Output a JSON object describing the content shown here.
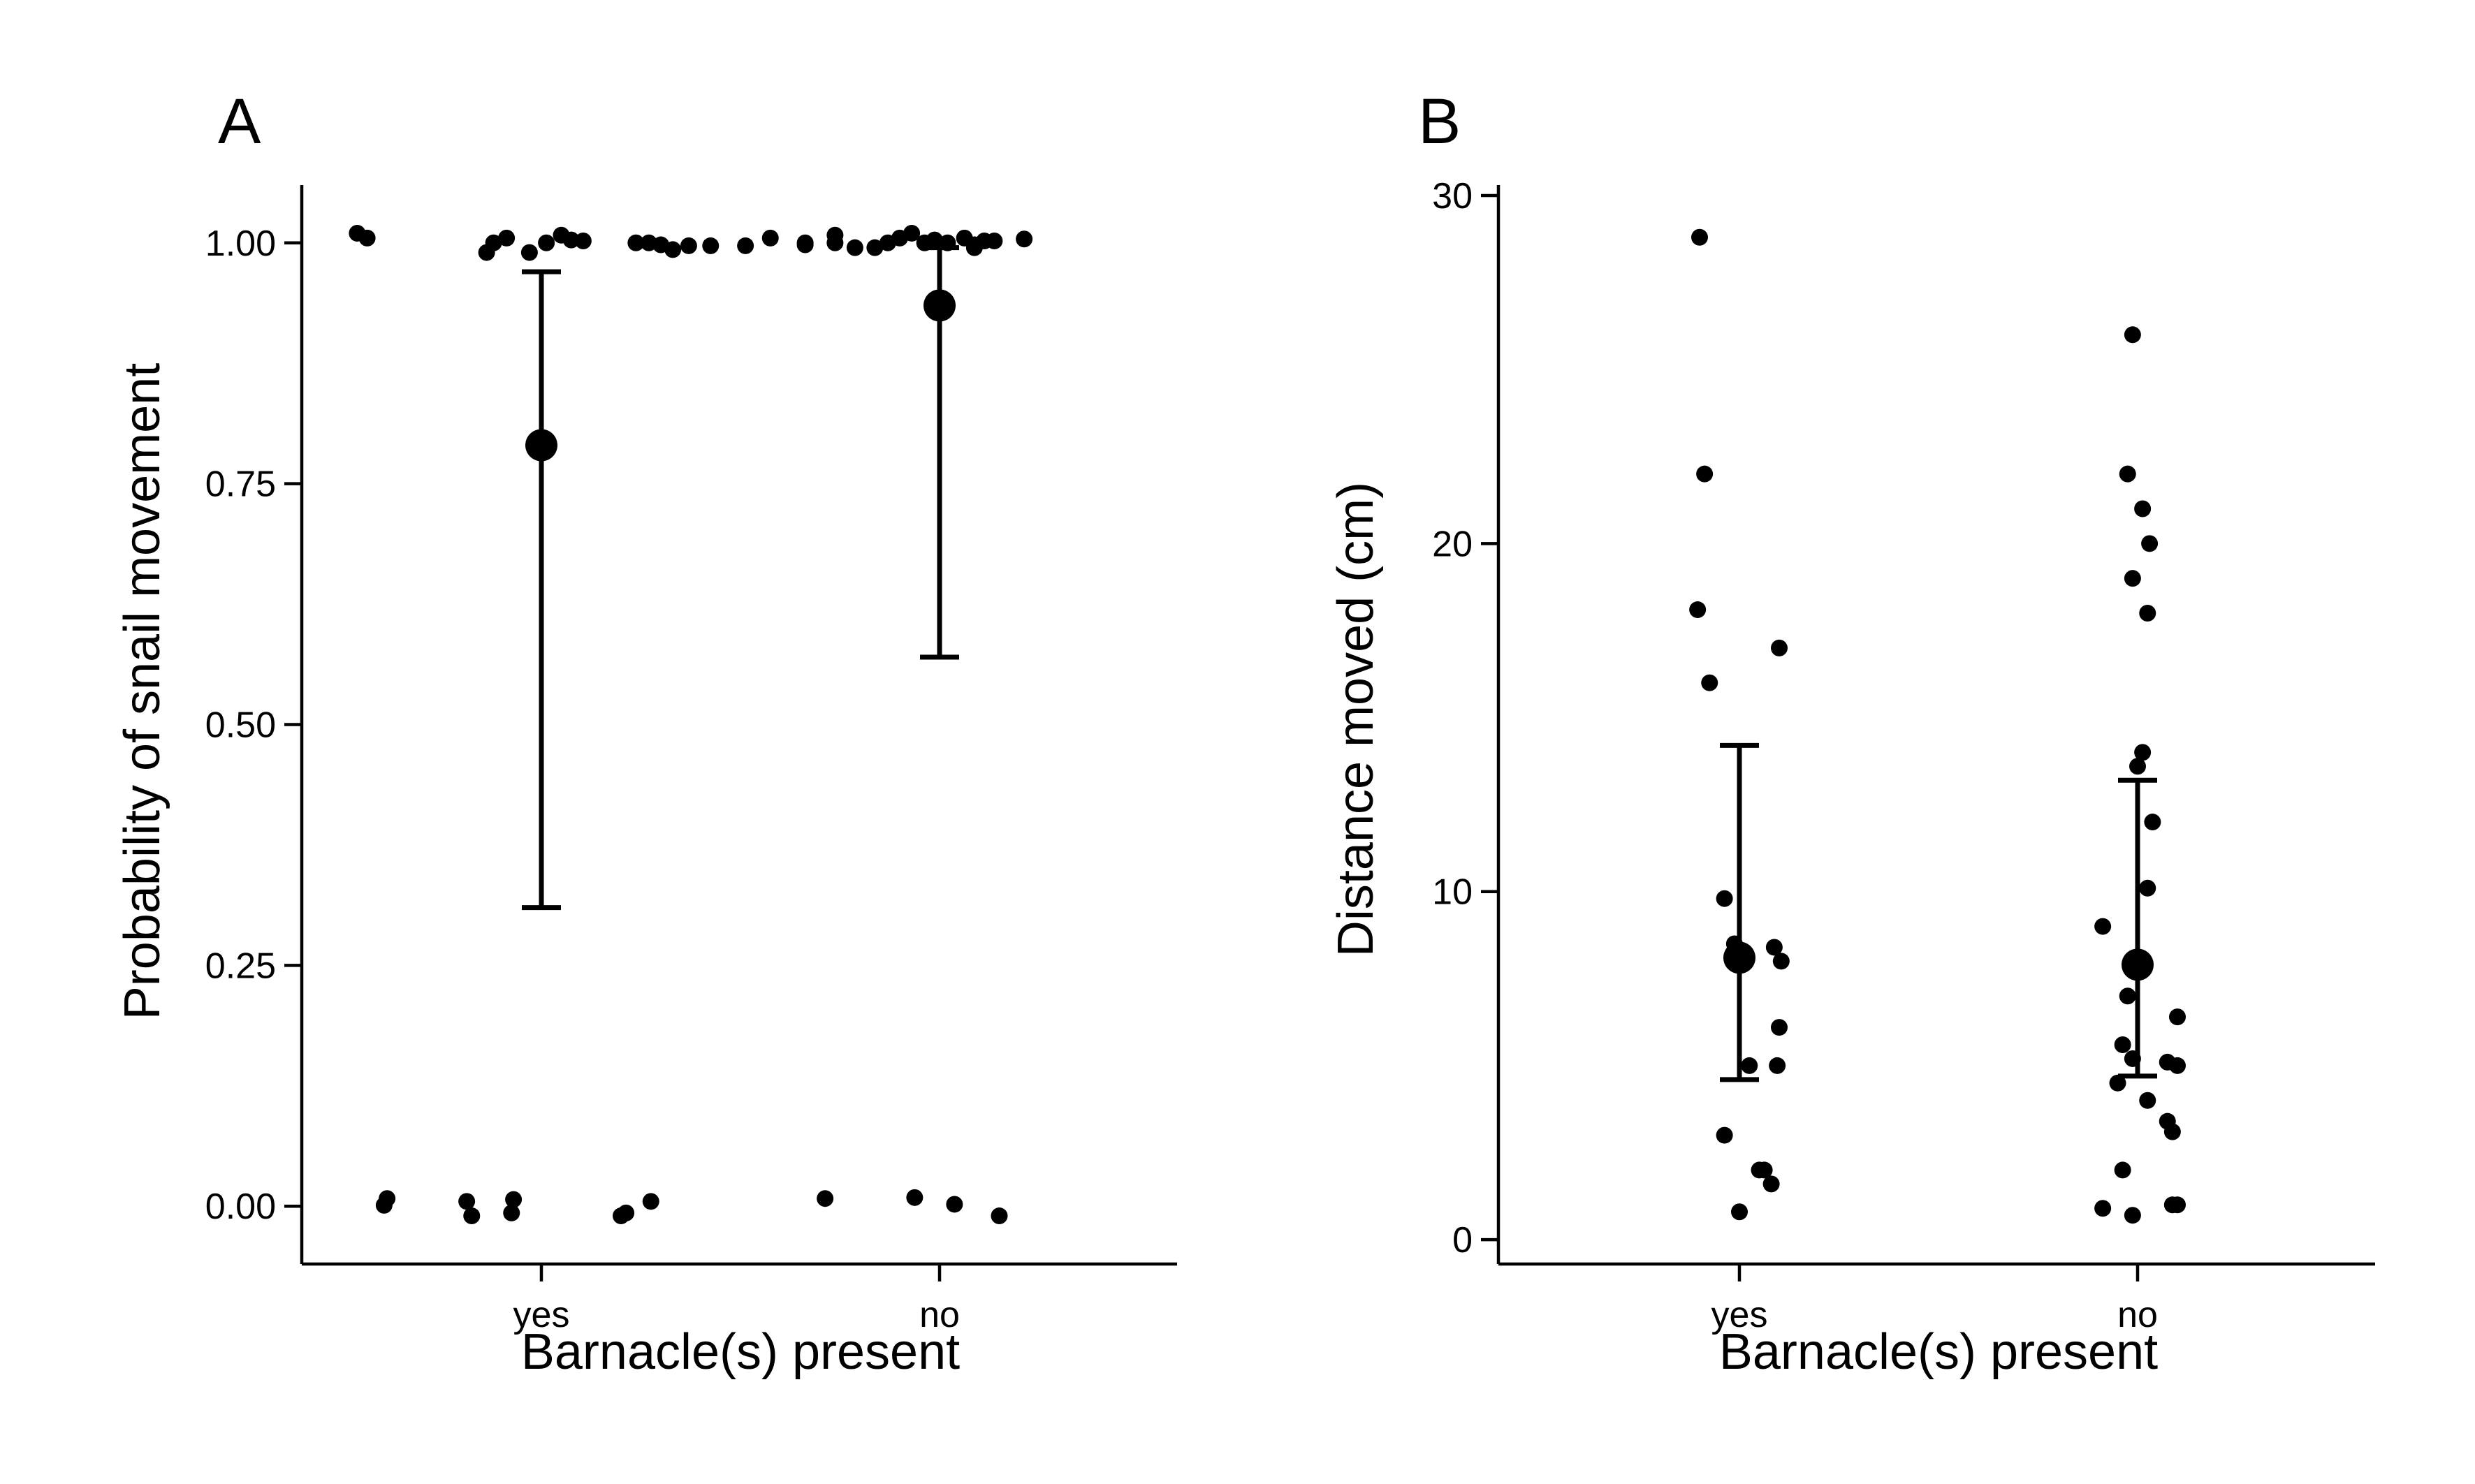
{
  "chart_data": [
    {
      "type": "scatter",
      "panel_label": "A",
      "xlabel": "Barnacle(s) present",
      "ylabel": "Probability of snail movement",
      "categories": [
        "yes",
        "no"
      ],
      "ylim": [
        -0.06,
        1.06
      ],
      "yticks": [
        0.0,
        0.25,
        0.5,
        0.75,
        1.0
      ],
      "ytick_labels": [
        "0.00",
        "0.25",
        "0.50",
        "0.75",
        "1.00"
      ],
      "points": [
        {
          "x": -1.85,
          "y": 1.01
        },
        {
          "x": -1.75,
          "y": 1.005
        },
        {
          "x": -0.55,
          "y": 0.99
        },
        {
          "x": -0.48,
          "y": 1.0
        },
        {
          "x": -0.35,
          "y": 1.005
        },
        {
          "x": -0.12,
          "y": 0.99
        },
        {
          "x": 0.05,
          "y": 1.0
        },
        {
          "x": 0.2,
          "y": 1.008
        },
        {
          "x": 0.3,
          "y": 1.003
        },
        {
          "x": 0.42,
          "y": 1.002
        },
        {
          "x": 0.95,
          "y": 1.0
        },
        {
          "x": 1.08,
          "y": 1.0
        },
        {
          "x": 1.2,
          "y": 0.998
        },
        {
          "x": 1.32,
          "y": 0.993
        },
        {
          "x": 1.48,
          "y": 0.997
        },
        {
          "x": 1.7,
          "y": 0.997
        },
        {
          "x": -1.55,
          "y": 0.008
        },
        {
          "x": -1.58,
          "y": 0.001
        },
        {
          "x": -0.75,
          "y": 0.005
        },
        {
          "x": -0.7,
          "y": -0.01
        },
        {
          "x": -0.28,
          "y": 0.007
        },
        {
          "x": -0.3,
          "y": -0.007
        },
        {
          "x": 0.8,
          "y": -0.01
        },
        {
          "x": 0.85,
          "y": -0.007
        },
        {
          "x": 1.1,
          "y": 0.005
        },
        {
          "x": 2.05,
          "y": 0.997
        },
        {
          "x": 2.3,
          "y": 1.005
        },
        {
          "x": 2.65,
          "y": 1.0
        },
        {
          "x": 2.65,
          "y": 0.998
        },
        {
          "x": 2.95,
          "y": 1.008
        },
        {
          "x": 2.95,
          "y": 1.0
        },
        {
          "x": 3.15,
          "y": 0.995
        },
        {
          "x": 3.35,
          "y": 0.995
        },
        {
          "x": 3.48,
          "y": 1.0
        },
        {
          "x": 3.6,
          "y": 1.005
        },
        {
          "x": 3.72,
          "y": 1.01
        },
        {
          "x": 3.85,
          "y": 1.0
        },
        {
          "x": 3.95,
          "y": 1.003
        },
        {
          "x": 4.08,
          "y": 1.0
        },
        {
          "x": 4.25,
          "y": 1.005
        },
        {
          "x": 4.35,
          "y": 0.998
        },
        {
          "x": 4.45,
          "y": 1.002
        },
        {
          "x": 4.55,
          "y": 1.002
        },
        {
          "x": 4.35,
          "y": 0.995
        },
        {
          "x": 4.85,
          "y": 1.004
        },
        {
          "x": 2.85,
          "y": 0.008
        },
        {
          "x": 3.75,
          "y": 0.009
        },
        {
          "x": 4.15,
          "y": 0.002
        },
        {
          "x": 4.6,
          "y": -0.01
        }
      ],
      "point_x_scale": "category units: yes = 0, no = 4",
      "means": [
        {
          "category": "yes",
          "value": 0.79,
          "lower": 0.31,
          "upper": 0.97
        },
        {
          "category": "no",
          "value": 0.935,
          "lower": 0.57,
          "upper": 0.995
        }
      ]
    },
    {
      "type": "scatter",
      "panel_label": "B",
      "xlabel": "Barnacle(s) present",
      "ylabel": "Distance moved (cm)",
      "categories": [
        "yes",
        "no"
      ],
      "ylim": [
        -0.7,
        30.3
      ],
      "yticks": [
        0,
        10,
        20,
        30
      ],
      "ytick_labels": [
        "0",
        "10",
        "20",
        "30"
      ],
      "points": [
        {
          "x": -0.4,
          "y": 28.8
        },
        {
          "x": -0.35,
          "y": 22.0
        },
        {
          "x": -0.42,
          "y": 18.1
        },
        {
          "x": -0.3,
          "y": 16.0
        },
        {
          "x": 0.4,
          "y": 17.0
        },
        {
          "x": -0.15,
          "y": 9.8
        },
        {
          "x": -0.05,
          "y": 8.5
        },
        {
          "x": 0.35,
          "y": 8.4
        },
        {
          "x": 0.42,
          "y": 8.0
        },
        {
          "x": 0.4,
          "y": 6.1
        },
        {
          "x": 0.1,
          "y": 5.0
        },
        {
          "x": 0.38,
          "y": 5.0
        },
        {
          "x": -0.15,
          "y": 3.0
        },
        {
          "x": 0.2,
          "y": 2.0
        },
        {
          "x": 0.25,
          "y": 2.0
        },
        {
          "x": 0.32,
          "y": 1.6
        },
        {
          "x": 0.0,
          "y": 0.8
        },
        {
          "x": 3.95,
          "y": 26.0
        },
        {
          "x": 3.9,
          "y": 22.0
        },
        {
          "x": 4.05,
          "y": 21.0
        },
        {
          "x": 4.12,
          "y": 20.0
        },
        {
          "x": 3.95,
          "y": 19.0
        },
        {
          "x": 4.1,
          "y": 18.0
        },
        {
          "x": 4.05,
          "y": 14.0
        },
        {
          "x": 4.0,
          "y": 13.6
        },
        {
          "x": 4.15,
          "y": 12.0
        },
        {
          "x": 4.1,
          "y": 10.1
        },
        {
          "x": 3.65,
          "y": 9.0
        },
        {
          "x": 3.9,
          "y": 7.0
        },
        {
          "x": 4.4,
          "y": 6.4
        },
        {
          "x": 3.85,
          "y": 5.6
        },
        {
          "x": 3.95,
          "y": 5.2
        },
        {
          "x": 4.3,
          "y": 5.1
        },
        {
          "x": 4.4,
          "y": 5.0
        },
        {
          "x": 3.8,
          "y": 4.5
        },
        {
          "x": 4.1,
          "y": 4.0
        },
        {
          "x": 4.3,
          "y": 3.4
        },
        {
          "x": 4.35,
          "y": 3.1
        },
        {
          "x": 3.85,
          "y": 2.0
        },
        {
          "x": 3.65,
          "y": 0.9
        },
        {
          "x": 3.95,
          "y": 0.7
        },
        {
          "x": 4.35,
          "y": 1.0
        },
        {
          "x": 4.4,
          "y": 1.0
        }
      ],
      "point_x_scale": "category units: yes = 0, no = 4",
      "means": [
        {
          "category": "yes",
          "value": 8.1,
          "lower": 4.6,
          "upper": 14.2
        },
        {
          "category": "no",
          "value": 7.9,
          "lower": 4.7,
          "upper": 13.2
        }
      ]
    }
  ]
}
